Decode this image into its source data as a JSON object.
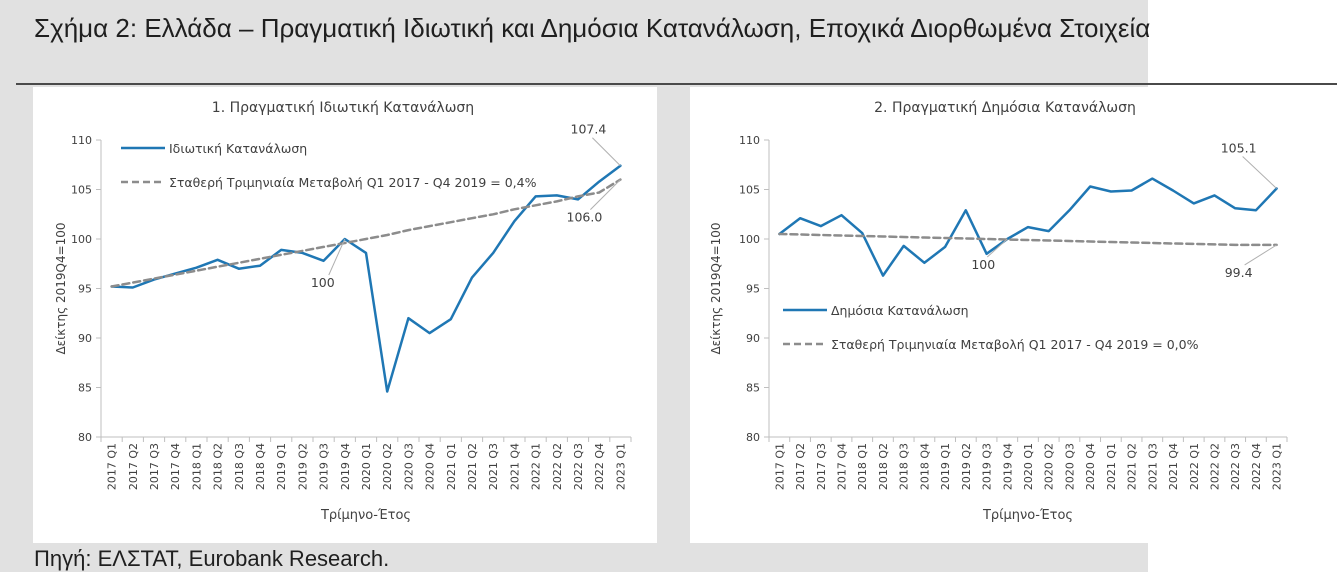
{
  "figure": {
    "title": "Σχήμα 2: Ελλάδα – Πραγματική Ιδιωτική και Δημόσια Κατανάλωση, Εποχικά Διορθωμένα Στοιχεία",
    "source": "Πηγή: ΕΛΣΤΑΤ, Eurobank Research."
  },
  "chart_data": [
    {
      "type": "line",
      "title": "1. Πραγματική Ιδιωτική Κατανάλωση",
      "xlabel": "Τρίμηνο-Έτος",
      "ylabel": "Δείκτης 2019Q4=100",
      "ylim": [
        80,
        110
      ],
      "yticks": [
        80,
        85,
        90,
        95,
        100,
        105,
        110
      ],
      "legend_position": "top-left",
      "categories": [
        "2017 Q1",
        "2017 Q2",
        "2017 Q3",
        "2017 Q4",
        "2018 Q1",
        "2018 Q2",
        "2018 Q3",
        "2018 Q4",
        "2019 Q1",
        "2019 Q2",
        "2019 Q3",
        "2019 Q4",
        "2020 Q1",
        "2020 Q2",
        "2020 Q3",
        "2020 Q4",
        "2021 Q1",
        "2021 Q2",
        "2021 Q3",
        "2021 Q4",
        "2022 Q1",
        "2022 Q2",
        "2022 Q3",
        "2022 Q4",
        "2023 Q1"
      ],
      "series": [
        {
          "name": "Ιδιωτική Κατανάλωση",
          "style": "solid",
          "color": "#1f77b4",
          "values": [
            95.2,
            95.1,
            95.9,
            96.5,
            97.1,
            97.9,
            97.0,
            97.3,
            98.9,
            98.6,
            97.8,
            100.0,
            98.6,
            84.6,
            92.0,
            90.5,
            91.9,
            96.1,
            98.6,
            101.8,
            104.3,
            104.4,
            104.0,
            105.8,
            107.4
          ]
        },
        {
          "name": "Σταθερή Τριμηνιαία Μεταβολή Q1 2017 - Q4 2019 = 0,4%",
          "style": "dashed",
          "color": "#8c8c8c",
          "values": [
            95.2,
            95.6,
            96.0,
            96.4,
            96.8,
            97.2,
            97.6,
            98.0,
            98.4,
            98.8,
            99.2,
            99.6,
            100.0,
            100.4,
            100.9,
            101.3,
            101.7,
            102.1,
            102.5,
            103.0,
            103.4,
            103.8,
            104.3,
            104.7,
            106.0
          ]
        }
      ],
      "annotations": [
        {
          "text": "107.4",
          "category": "2023 Q1",
          "value": 107.4
        },
        {
          "text": "106.0",
          "category": "2023 Q1",
          "value": 106.0
        },
        {
          "text": "100",
          "category": "2019 Q4",
          "value": 100.0
        }
      ]
    },
    {
      "type": "line",
      "title": "2. Πραγματική Δημόσια Κατανάλωση",
      "xlabel": "Τρίμηνο-Έτος",
      "ylabel": "Δείκτης 2019Q4=100",
      "ylim": [
        80,
        110
      ],
      "yticks": [
        80,
        85,
        90,
        95,
        100,
        105,
        110
      ],
      "legend_position": "middle-left",
      "categories": [
        "2017 Q1",
        "2017 Q2",
        "2017 Q3",
        "2017 Q4",
        "2018 Q1",
        "2018 Q2",
        "2018 Q3",
        "2018 Q4",
        "2019 Q1",
        "2019 Q2",
        "2019 Q3",
        "2019 Q4",
        "2020 Q1",
        "2020 Q2",
        "2020 Q3",
        "2020 Q4",
        "2021 Q1",
        "2021 Q2",
        "2021 Q3",
        "2021 Q4",
        "2022 Q1",
        "2022 Q2",
        "2022 Q3",
        "2022 Q4",
        "2023 Q1"
      ],
      "series": [
        {
          "name": "Δημόσια Κατανάλωση",
          "style": "solid",
          "color": "#1f77b4",
          "values": [
            100.5,
            102.1,
            101.3,
            102.4,
            100.6,
            96.3,
            99.3,
            97.6,
            99.2,
            102.9,
            98.5,
            100.0,
            101.2,
            100.8,
            102.9,
            105.3,
            104.8,
            104.9,
            106.1,
            104.9,
            103.6,
            104.4,
            103.1,
            102.9,
            105.1
          ]
        },
        {
          "name": "Σταθερή Τριμηνιαία Μεταβολή Q1 2017 - Q4 2019 = 0,0%",
          "style": "dashed",
          "color": "#8c8c8c",
          "values": [
            100.5,
            100.45,
            100.4,
            100.35,
            100.3,
            100.25,
            100.2,
            100.15,
            100.1,
            100.05,
            100.0,
            99.95,
            99.9,
            99.85,
            99.8,
            99.75,
            99.7,
            99.65,
            99.6,
            99.55,
            99.5,
            99.45,
            99.4,
            99.4,
            99.4
          ]
        }
      ],
      "annotations": [
        {
          "text": "105.1",
          "category": "2023 Q1",
          "value": 105.1
        },
        {
          "text": "99.4",
          "category": "2023 Q1",
          "value": 99.4
        },
        {
          "text": "100",
          "category": "2019 Q4",
          "value": 100.0
        }
      ]
    }
  ]
}
